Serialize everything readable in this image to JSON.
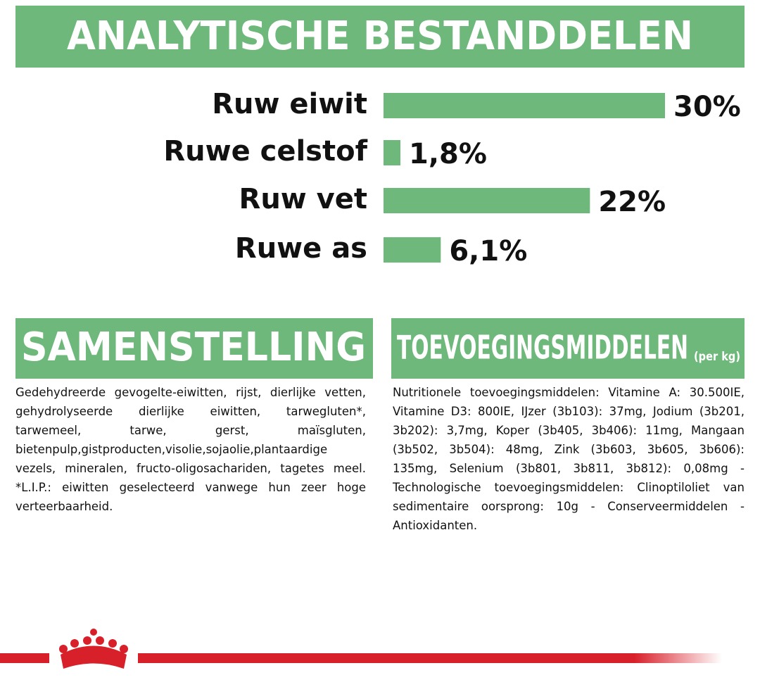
{
  "chart_data": {
    "type": "bar",
    "orientation": "horizontal",
    "title": "ANALYTISCHE BESTANDDELEN",
    "categories": [
      "Ruw eiwit",
      "Ruwe celstof",
      "Ruw vet",
      "Ruwe as"
    ],
    "values": [
      30,
      1.8,
      22,
      6.1
    ],
    "value_labels": [
      "30%",
      "1,8%",
      "22%",
      "6,1%"
    ],
    "color": "#6db87a"
  },
  "sections": [
    {
      "title": "SAMENSTELLING",
      "text": "Gedehydreerde gevogelte-eiwitten, rijst, dierlijke vetten, gehydrolyseerde dierlijke eiwitten, tarwegluten*, tarwemeel, tarwe, gerst, maïsgluten, bietenpulp,gistproducten,visolie,sojaolie,plantaardige vezels, mineralen, fructo-oligosachariden, tagetes meel. *L.I.P.: eiwitten geselecteerd vanwege hun zeer hoge verteerbaarheid."
    },
    {
      "title": "TOEVOEGINGSMIDDELEN",
      "subtitle": "(per kg)",
      "text": "Nutritionele toevoegingsmiddelen: Vitamine A: 30.500IE, Vitamine D3: 800IE, IJzer (3b103): 37mg, Jodium (3b201, 3b202): 3,7mg, Koper (3b405, 3b406): 11mg, Mangaan (3b502, 3b504): 48mg, Zink (3b603, 3b605, 3b606): 135mg, Selenium (3b801, 3b811, 3b812): 0,08mg - Technologische toevoegingsmiddelen: Clinoptiloliet van sedimentaire oorsprong: 10g - Conserveermiddelen - Antioxidanten."
    }
  ]
}
